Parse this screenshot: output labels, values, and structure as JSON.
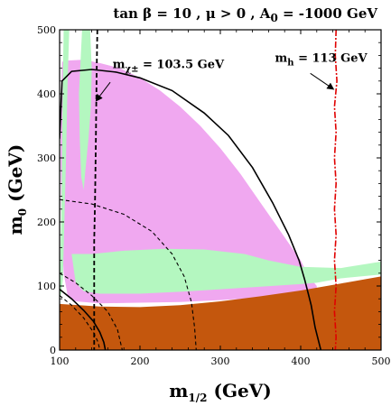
{
  "chart_data": {
    "type": "area",
    "title": "tan β = 10 ,  μ > 0 , A₀ = -1000 GeV",
    "title_parts": {
      "lead": "tan β = 10 ,  μ > 0 , A",
      "sub": "0",
      "tail": " = -1000 GeV"
    },
    "xlabel": {
      "main": "m",
      "sub": "1/2",
      "unit": " (GeV)"
    },
    "ylabel": {
      "main": "m",
      "sub": "0",
      "unit": " (GeV)"
    },
    "xlim": [
      100,
      500
    ],
    "ylim": [
      0,
      500
    ],
    "xticks": [
      100,
      200,
      300,
      400,
      500
    ],
    "yticks": [
      0,
      100,
      200,
      300,
      400,
      500
    ],
    "grid": false,
    "colors": {
      "brown": "#c4570d",
      "pink": "#f0a8f0",
      "green": "#b4f7c0",
      "red": "#e00000",
      "black": "#000000"
    },
    "regions": {
      "brown": [
        [
          100,
          72
        ],
        [
          150,
          68
        ],
        [
          200,
          67
        ],
        [
          250,
          70
        ],
        [
          300,
          76
        ],
        [
          350,
          84
        ],
        [
          400,
          93
        ],
        [
          450,
          104
        ],
        [
          500,
          115
        ],
        [
          500,
          0
        ],
        [
          100,
          0
        ]
      ],
      "pink": [
        [
          103,
          450
        ],
        [
          110,
          452
        ],
        [
          125,
          453
        ],
        [
          135,
          452
        ],
        [
          150,
          448
        ],
        [
          175,
          440
        ],
        [
          200,
          425
        ],
        [
          225,
          405
        ],
        [
          250,
          380
        ],
        [
          275,
          350
        ],
        [
          300,
          315
        ],
        [
          325,
          275
        ],
        [
          350,
          230
        ],
        [
          375,
          185
        ],
        [
          400,
          140
        ],
        [
          410,
          115
        ],
        [
          420,
          100
        ],
        [
          420,
          92
        ],
        [
          400,
          88
        ],
        [
          350,
          82
        ],
        [
          300,
          78
        ],
        [
          250,
          75
        ],
        [
          200,
          74
        ],
        [
          150,
          73
        ],
        [
          120,
          76
        ],
        [
          110,
          85
        ],
        [
          105,
          120
        ],
        [
          102,
          200
        ],
        [
          101,
          300
        ],
        [
          102,
          400
        ]
      ],
      "green_right": [
        [
          115,
          150
        ],
        [
          140,
          150
        ],
        [
          180,
          155
        ],
        [
          230,
          158
        ],
        [
          280,
          157
        ],
        [
          330,
          150
        ],
        [
          360,
          140
        ],
        [
          400,
          130
        ],
        [
          450,
          128
        ],
        [
          500,
          138
        ],
        [
          500,
          118
        ],
        [
          450,
          112
        ],
        [
          420,
          105
        ],
        [
          400,
          103
        ],
        [
          350,
          99
        ],
        [
          300,
          95
        ],
        [
          250,
          91
        ],
        [
          200,
          88
        ],
        [
          150,
          88
        ],
        [
          130,
          92
        ],
        [
          120,
          105
        ]
      ],
      "green_left": [
        [
          105,
          500
        ],
        [
          112,
          500
        ],
        [
          110,
          420
        ],
        [
          108,
          300
        ],
        [
          106,
          200
        ],
        [
          104,
          110
        ],
        [
          102,
          88
        ],
        [
          100,
          80
        ],
        [
          100,
          105
        ],
        [
          102,
          200
        ],
        [
          103,
          300
        ],
        [
          104,
          420
        ]
      ],
      "green_strip": [
        [
          128,
          500
        ],
        [
          138,
          500
        ],
        [
          140,
          440
        ],
        [
          139,
          380
        ],
        [
          136,
          330
        ],
        [
          132,
          280
        ],
        [
          130,
          250
        ],
        [
          127,
          270
        ],
        [
          125,
          330
        ],
        [
          124,
          400
        ]
      ]
    },
    "curves": {
      "chargino_limit": [
        [
          147,
          500
        ],
        [
          146,
          420
        ],
        [
          145,
          320
        ],
        [
          144,
          230
        ],
        [
          143,
          170
        ],
        [
          143,
          120
        ],
        [
          143,
          0
        ]
      ],
      "higgs_limit": [
        [
          444,
          500
        ],
        [
          443,
          460
        ],
        [
          445,
          420
        ],
        [
          442,
          380
        ],
        [
          444,
          340
        ],
        [
          442,
          300
        ],
        [
          444,
          260
        ],
        [
          442,
          220
        ],
        [
          444,
          180
        ],
        [
          442,
          140
        ],
        [
          444,
          100
        ],
        [
          442,
          60
        ],
        [
          444,
          20
        ],
        [
          443,
          0
        ]
      ],
      "boundary_outer": [
        [
          100,
          330
        ],
        [
          103,
          420
        ],
        [
          115,
          435
        ],
        [
          140,
          438
        ],
        [
          170,
          434
        ],
        [
          200,
          425
        ],
        [
          240,
          405
        ],
        [
          280,
          370
        ],
        [
          310,
          335
        ],
        [
          340,
          285
        ],
        [
          365,
          230
        ],
        [
          385,
          180
        ],
        [
          398,
          140
        ],
        [
          405,
          110
        ],
        [
          410,
          85
        ],
        [
          413,
          70
        ],
        [
          418,
          35
        ],
        [
          425,
          0
        ]
      ],
      "boundary_inner": [
        [
          100,
          95
        ],
        [
          115,
          80
        ],
        [
          130,
          62
        ],
        [
          142,
          45
        ],
        [
          150,
          28
        ],
        [
          155,
          12
        ],
        [
          157,
          0
        ]
      ],
      "dashed_outer": [
        [
          100,
          235
        ],
        [
          140,
          228
        ],
        [
          180,
          212
        ],
        [
          215,
          185
        ],
        [
          240,
          150
        ],
        [
          255,
          115
        ],
        [
          264,
          75
        ],
        [
          268,
          35
        ],
        [
          270,
          0
        ]
      ],
      "dashed_mid": [
        [
          100,
          120
        ],
        [
          120,
          105
        ],
        [
          140,
          85
        ],
        [
          160,
          60
        ],
        [
          172,
          32
        ],
        [
          178,
          0
        ]
      ],
      "dashed_inner": [
        [
          100,
          85
        ],
        [
          115,
          70
        ],
        [
          130,
          50
        ],
        [
          142,
          28
        ],
        [
          148,
          12
        ],
        [
          150,
          0
        ]
      ]
    },
    "annotations": [
      {
        "id": "chargino",
        "main": "m",
        "sub": "χ±",
        "tail": " = 103.5 GeV",
        "text_at": [
          166,
          440
        ],
        "arrow_from": [
          163,
          418
        ],
        "arrow_to": [
          146,
          390
        ]
      },
      {
        "id": "higgs",
        "main": "m",
        "sub": "h",
        "tail": " = 113 GeV",
        "text_at": [
          368,
          450
        ],
        "arrow_from": [
          412,
          432
        ],
        "arrow_to": [
          440,
          408
        ]
      }
    ]
  }
}
